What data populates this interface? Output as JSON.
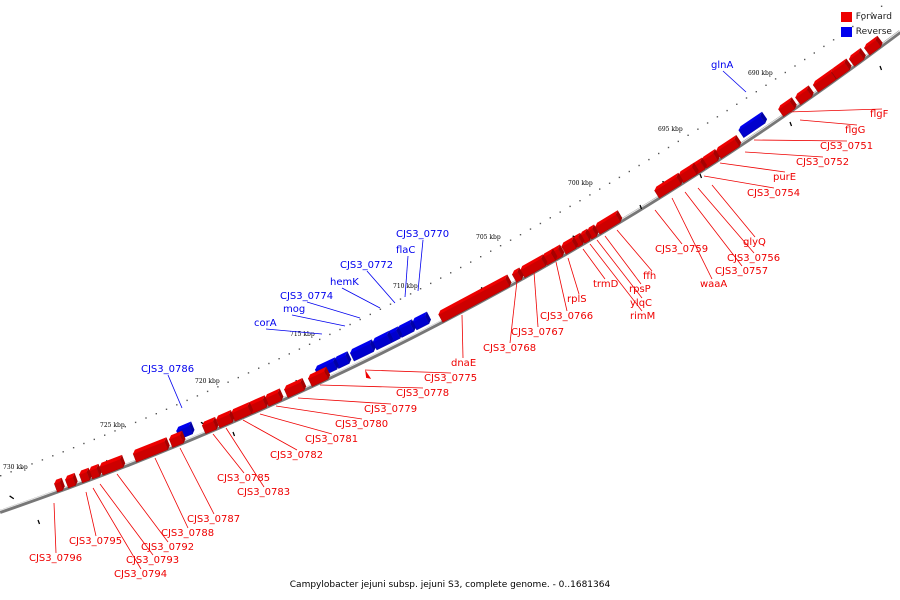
{
  "caption": "Campylobacter jejuni subsp. jejuni S3, complete genome. - 0..1681364",
  "legend": [
    {
      "label": "Forward",
      "color": "#ee0000"
    },
    {
      "label": "Reverse",
      "color": "#0000ee"
    }
  ],
  "colors": {
    "forward": "#ee0000",
    "reverse": "#0000ee",
    "backbone": "#777777"
  },
  "ticks": [
    "690 kbp",
    "695 kbp",
    "700 kbp",
    "705 kbp",
    "710 kbp",
    "715 kbp",
    "720 kbp",
    "725 kbp",
    "730 kbp"
  ],
  "genes": [
    {
      "name": "glnA",
      "strand": "reverse",
      "size": 26
    },
    {
      "name": "flgF",
      "strand": "forward",
      "size": 14
    },
    {
      "name": "flgG",
      "strand": "forward",
      "size": 14
    },
    {
      "name": "CJS3_0751",
      "strand": "forward",
      "size": 22
    },
    {
      "name": "CJS3_0752",
      "strand": "forward",
      "size": 16
    },
    {
      "name": "purE",
      "strand": "forward",
      "size": 12
    },
    {
      "name": "CJS3_0754",
      "strand": "forward",
      "size": 14
    },
    {
      "name": "glyQ",
      "strand": "forward",
      "size": 22
    },
    {
      "name": "CJS3_0756",
      "strand": "forward",
      "size": 14
    },
    {
      "name": "CJS3_0757",
      "strand": "forward",
      "size": 14
    },
    {
      "name": "waaA",
      "strand": "forward",
      "size": 16
    },
    {
      "name": "CJS3_0759",
      "strand": "forward",
      "size": 26
    },
    {
      "name": "ffh",
      "strand": "forward",
      "size": 24
    },
    {
      "name": "rpsP",
      "strand": "forward",
      "size": 6
    },
    {
      "name": "ylqC",
      "strand": "forward",
      "size": 6
    },
    {
      "name": "rimM",
      "strand": "forward",
      "size": 6
    },
    {
      "name": "trmD",
      "strand": "forward",
      "size": 12
    },
    {
      "name": "rplS",
      "strand": "forward",
      "size": 10
    },
    {
      "name": "CJS3_0766",
      "strand": "forward",
      "size": 10
    },
    {
      "name": "CJS3_0767",
      "strand": "forward",
      "size": 24
    },
    {
      "name": "CJS3_0768",
      "strand": "forward",
      "size": 6
    },
    {
      "name": "CJS3_0770",
      "strand": "reverse",
      "size": 14
    },
    {
      "name": "flaC",
      "strand": "reverse",
      "size": 14
    },
    {
      "name": "CJS3_0772",
      "strand": "reverse",
      "size": 10
    },
    {
      "name": "hemK",
      "strand": "reverse",
      "size": 16
    },
    {
      "name": "CJS3_0774",
      "strand": "reverse",
      "size": 22
    },
    {
      "name": "mog",
      "strand": "reverse",
      "size": 12
    },
    {
      "name": "corA",
      "strand": "reverse",
      "size": 20
    },
    {
      "name": "dnaE",
      "strand": "forward",
      "size": 76
    },
    {
      "name": "CJS3_0775",
      "strand": "forward",
      "size": 7
    },
    {
      "name": "CJS3_0778",
      "strand": "forward",
      "size": 18
    },
    {
      "name": "CJS3_0779",
      "strand": "forward",
      "size": 18
    },
    {
      "name": "CJS3_0780",
      "strand": "forward",
      "size": 14
    },
    {
      "name": "CJS3_0781",
      "strand": "forward",
      "size": 16
    },
    {
      "name": "CJS3_0782",
      "strand": "forward",
      "size": 18
    },
    {
      "name": "CJS3_0783",
      "strand": "forward",
      "size": 14
    },
    {
      "name": "CJS3_0785",
      "strand": "forward",
      "size": 12
    },
    {
      "name": "CJS3_0786",
      "strand": "reverse",
      "size": 14
    },
    {
      "name": "CJS3_0787",
      "strand": "forward",
      "size": 12
    },
    {
      "name": "CJS3_0788",
      "strand": "forward",
      "size": 34
    },
    {
      "name": "CJS3_0792",
      "strand": "forward",
      "size": 22
    },
    {
      "name": "CJS3_0793",
      "strand": "forward",
      "size": 8
    },
    {
      "name": "CJS3_0794",
      "strand": "forward",
      "size": 8
    },
    {
      "name": "CJS3_0795",
      "strand": "forward",
      "size": 8
    },
    {
      "name": "CJS3_0796",
      "strand": "forward",
      "size": 6
    }
  ]
}
